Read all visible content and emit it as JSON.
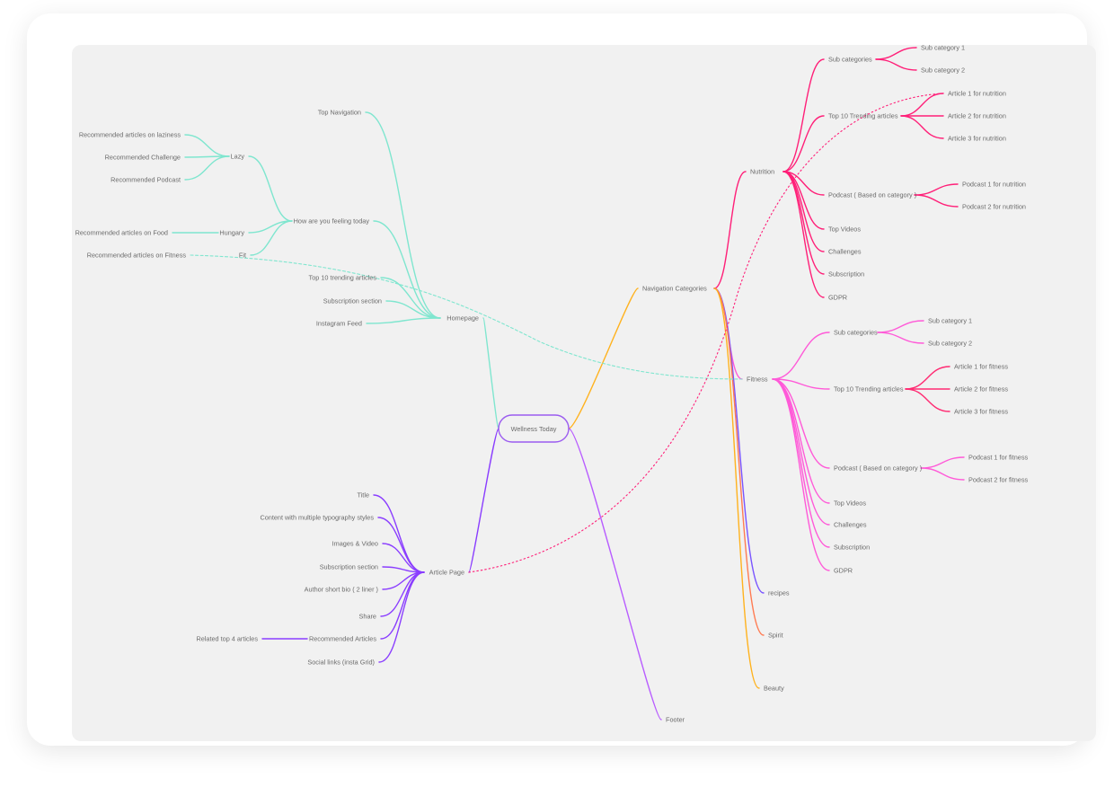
{
  "colors": {
    "background": "#f1f1f1",
    "text": "#6b6b6b",
    "homepage": "#7fe6cf",
    "article": "#8a3dff",
    "navigation": "#ffb21e",
    "nutrition": "#ff1f78",
    "fitness": "#ff5ad8",
    "fitness_articles": "#ff2a72",
    "recipes": "#7a55ff",
    "spirit": "#ff7b52",
    "beauty": "#ffb21e",
    "footer": "#b85cff",
    "root_border": "#9b5cf0"
  },
  "root": {
    "id": "root",
    "label": "Wellness Today"
  },
  "nodes": [
    {
      "id": "nav",
      "parent": "root",
      "label": "Navigation Categories",
      "color": "navigation"
    },
    {
      "id": "nut",
      "parent": "nav",
      "label": "Nutrition",
      "color": "nutrition"
    },
    {
      "id": "nut_sub",
      "parent": "nut",
      "label": "Sub categories",
      "color": "nutrition"
    },
    {
      "id": "nut_sub1",
      "parent": "nut_sub",
      "label": "Sub category 1",
      "color": "nutrition"
    },
    {
      "id": "nut_sub2",
      "parent": "nut_sub",
      "label": "Sub category 2",
      "color": "nutrition"
    },
    {
      "id": "nut_top",
      "parent": "nut",
      "label": "Top 10 Trending articles",
      "color": "nutrition"
    },
    {
      "id": "nut_a1",
      "parent": "nut_top",
      "label": "Article 1 for nutrition",
      "color": "nutrition"
    },
    {
      "id": "nut_a2",
      "parent": "nut_top",
      "label": "Article 2 for nutrition",
      "color": "nutrition"
    },
    {
      "id": "nut_a3",
      "parent": "nut_top",
      "label": "Article 3 for nutrition",
      "color": "nutrition"
    },
    {
      "id": "nut_pod",
      "parent": "nut",
      "label": "Podcast ( Based on category )",
      "color": "nutrition"
    },
    {
      "id": "nut_p1",
      "parent": "nut_pod",
      "label": "Podcast 1 for nutrition",
      "color": "nutrition"
    },
    {
      "id": "nut_p2",
      "parent": "nut_pod",
      "label": "Podcast 2 for nutrition",
      "color": "nutrition"
    },
    {
      "id": "nut_vid",
      "parent": "nut",
      "label": "Top Videos",
      "color": "nutrition"
    },
    {
      "id": "nut_ch",
      "parent": "nut",
      "label": "Challenges",
      "color": "nutrition"
    },
    {
      "id": "nut_subs",
      "parent": "nut",
      "label": "Subscription",
      "color": "nutrition"
    },
    {
      "id": "nut_gdpr",
      "parent": "nut",
      "label": "GDPR",
      "color": "nutrition"
    },
    {
      "id": "fit",
      "parent": "nav",
      "label": "Fitness",
      "color": "fitness"
    },
    {
      "id": "fit_sub",
      "parent": "fit",
      "label": "Sub categories",
      "color": "fitness"
    },
    {
      "id": "fit_sub1",
      "parent": "fit_sub",
      "label": "Sub category 1",
      "color": "fitness"
    },
    {
      "id": "fit_sub2",
      "parent": "fit_sub",
      "label": "Sub category 2",
      "color": "fitness"
    },
    {
      "id": "fit_top",
      "parent": "fit",
      "label": "Top 10 Trending articles",
      "color": "fitness"
    },
    {
      "id": "fit_a1",
      "parent": "fit_top",
      "label": "Article 1 for fitness",
      "color": "fitness_articles"
    },
    {
      "id": "fit_a2",
      "parent": "fit_top",
      "label": "Article 2 for fitness",
      "color": "fitness_articles"
    },
    {
      "id": "fit_a3",
      "parent": "fit_top",
      "label": "Article 3 for fitness",
      "color": "fitness_articles"
    },
    {
      "id": "fit_pod",
      "parent": "fit",
      "label": "Podcast ( Based on category )",
      "color": "fitness"
    },
    {
      "id": "fit_p1",
      "parent": "fit_pod",
      "label": "Podcast 1 for fitness",
      "color": "fitness"
    },
    {
      "id": "fit_p2",
      "parent": "fit_pod",
      "label": "Podcast 2 for fitness",
      "color": "fitness"
    },
    {
      "id": "fit_vid",
      "parent": "fit",
      "label": "Top Videos",
      "color": "fitness"
    },
    {
      "id": "fit_ch",
      "parent": "fit",
      "label": "Challenges",
      "color": "fitness"
    },
    {
      "id": "fit_subs",
      "parent": "fit",
      "label": "Subscription",
      "color": "fitness"
    },
    {
      "id": "fit_gdpr",
      "parent": "fit",
      "label": "GDPR",
      "color": "fitness"
    },
    {
      "id": "recipes",
      "parent": "nav",
      "label": "recipes",
      "color": "recipes"
    },
    {
      "id": "spirit",
      "parent": "nav",
      "label": "Spirit",
      "color": "spirit"
    },
    {
      "id": "beauty",
      "parent": "nav",
      "label": "Beauty",
      "color": "beauty"
    },
    {
      "id": "footer",
      "parent": "root",
      "label": "Footer",
      "color": "footer"
    },
    {
      "id": "home",
      "parent": "root",
      "label": "Homepage",
      "color": "homepage"
    },
    {
      "id": "h_topnav",
      "parent": "home",
      "label": "Top Navigation",
      "color": "homepage"
    },
    {
      "id": "h_feel",
      "parent": "home",
      "label": "How are you feeling today",
      "color": "homepage"
    },
    {
      "id": "f_lazy",
      "parent": "h_feel",
      "label": "Lazy",
      "color": "homepage"
    },
    {
      "id": "l_art",
      "parent": "f_lazy",
      "label": "Recommended articles on laziness",
      "color": "homepage"
    },
    {
      "id": "l_ch",
      "parent": "f_lazy",
      "label": "Recommended Challenge",
      "color": "homepage"
    },
    {
      "id": "l_pod",
      "parent": "f_lazy",
      "label": "Recommended Podcast",
      "color": "homepage"
    },
    {
      "id": "f_hungry",
      "parent": "h_feel",
      "label": "Hungary",
      "color": "homepage"
    },
    {
      "id": "hu_food",
      "parent": "f_hungry",
      "label": "Recommended articles on Food",
      "color": "homepage"
    },
    {
      "id": "f_fit",
      "parent": "h_feel",
      "label": "Fit",
      "color": "homepage"
    },
    {
      "id": "fi_art",
      "parent": "f_fit",
      "label": "Recommended articles on Fitness",
      "color": "homepage",
      "dashed": true
    },
    {
      "id": "h_top10",
      "parent": "home",
      "label": "Top 10 trending articles",
      "color": "homepage"
    },
    {
      "id": "h_subs",
      "parent": "home",
      "label": "Subscription section",
      "color": "homepage"
    },
    {
      "id": "h_insta",
      "parent": "home",
      "label": "Instagram Feed",
      "color": "homepage"
    },
    {
      "id": "art",
      "parent": "root",
      "label": "Article Page",
      "color": "article"
    },
    {
      "id": "a_title",
      "parent": "art",
      "label": "Title",
      "color": "article"
    },
    {
      "id": "a_content",
      "parent": "art",
      "label": "Content with multiple typography styles",
      "color": "article"
    },
    {
      "id": "a_img",
      "parent": "art",
      "label": "Images & Video",
      "color": "article"
    },
    {
      "id": "a_subs",
      "parent": "art",
      "label": "Subscription section",
      "color": "article"
    },
    {
      "id": "a_bio",
      "parent": "art",
      "label": "Author short bio ( 2 liner )",
      "color": "article"
    },
    {
      "id": "a_share",
      "parent": "art",
      "label": "Share",
      "color": "article"
    },
    {
      "id": "a_rec",
      "parent": "art",
      "label": "Recommended Articles",
      "color": "article"
    },
    {
      "id": "a_rel",
      "parent": "a_rec",
      "label": "Related top 4 articles",
      "color": "article"
    },
    {
      "id": "a_social",
      "parent": "art",
      "label": "Social links (insta Grid)",
      "color": "article"
    }
  ],
  "cross_links": [
    {
      "from": "fi_art",
      "to": "fit",
      "color": "homepage",
      "style": "dashed"
    },
    {
      "from": "art",
      "to": "nut_a1",
      "color": "nutrition",
      "style": "dotted"
    }
  ]
}
